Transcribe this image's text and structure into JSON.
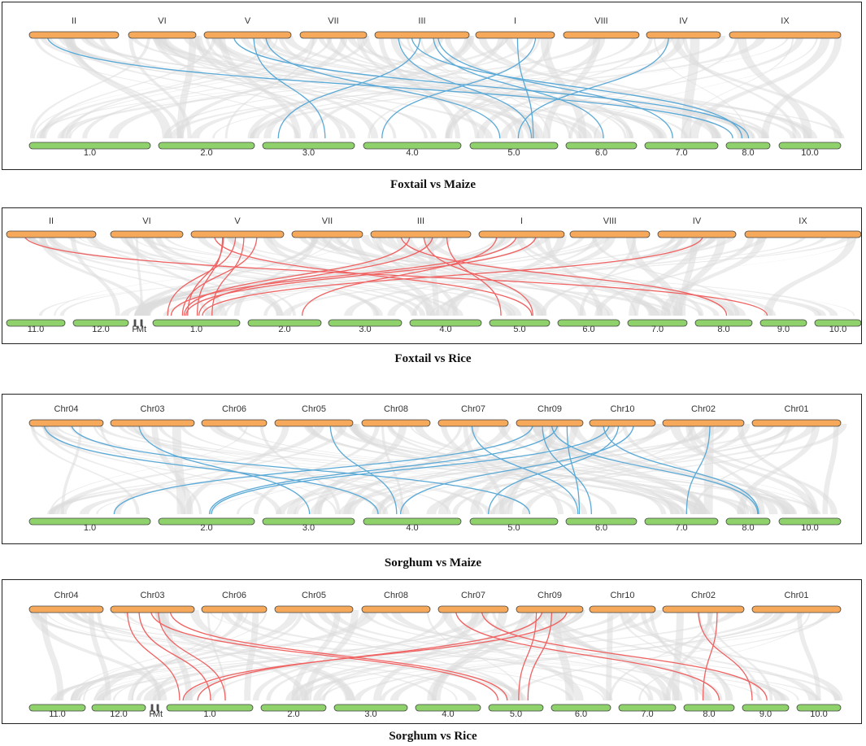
{
  "colors": {
    "top_bar": "#f6a95b",
    "bottom_bar": "#8fd16a",
    "blue_link": "#5aa9d6",
    "red_link": "#f06262",
    "background_link": "#dcdcdc"
  },
  "panels": [
    {
      "caption": "Foxtail vs Maize",
      "link_color": "#5aa9d6",
      "top": [
        "II",
        "VI",
        "V",
        "VII",
        "III",
        "I",
        "VIII",
        "IV",
        "IX"
      ],
      "bottom": [
        "1.0",
        "2.0",
        "3.0",
        "4.0",
        "5.0",
        "6.0",
        "7.0",
        "8.0",
        "10.0"
      ],
      "links": [
        [
          0,
          7
        ],
        [
          2,
          2
        ],
        [
          2,
          7
        ],
        [
          2,
          4
        ],
        [
          4,
          2
        ],
        [
          4,
          4
        ],
        [
          4,
          5
        ],
        [
          4,
          7
        ],
        [
          5,
          3
        ],
        [
          5,
          4
        ],
        [
          7,
          4
        ],
        [
          4,
          6
        ]
      ]
    },
    {
      "caption": "Foxtail vs Rice",
      "link_color": "#f06262",
      "top": [
        "II",
        "VI",
        "V",
        "VII",
        "III",
        "I",
        "VIII",
        "IV",
        "IX"
      ],
      "bottom": [
        "11.0",
        "12.0",
        "P",
        "Mt",
        "1.0",
        "2.0",
        "3.0",
        "4.0",
        "5.0",
        "6.0",
        "7.0",
        "8.0",
        "9.0",
        "10.0"
      ],
      "links": [
        [
          0,
          12
        ],
        [
          2,
          4
        ],
        [
          2,
          4
        ],
        [
          2,
          4
        ],
        [
          2,
          4
        ],
        [
          2,
          8
        ],
        [
          4,
          4
        ],
        [
          4,
          4
        ],
        [
          4,
          8
        ],
        [
          4,
          8
        ],
        [
          4,
          11
        ],
        [
          5,
          4
        ],
        [
          5,
          4
        ],
        [
          5,
          5
        ],
        [
          7,
          4
        ],
        [
          2,
          4
        ]
      ]
    },
    {
      "caption": "Sorghum vs Maize",
      "link_color": "#5aa9d6",
      "top": [
        "Chr04",
        "Chr03",
        "Chr06",
        "Chr05",
        "Chr08",
        "Chr07",
        "Chr09",
        "Chr10",
        "Chr02",
        "Chr01"
      ],
      "bottom": [
        "1.0",
        "2.0",
        "3.0",
        "4.0",
        "5.0",
        "6.0",
        "7.0",
        "8.0",
        "10.0"
      ],
      "links": [
        [
          0,
          3
        ],
        [
          0,
          4
        ],
        [
          1,
          2
        ],
        [
          3,
          3
        ],
        [
          5,
          5
        ],
        [
          6,
          0
        ],
        [
          6,
          1
        ],
        [
          6,
          5
        ],
        [
          6,
          5
        ],
        [
          6,
          7
        ],
        [
          7,
          1
        ],
        [
          7,
          3
        ],
        [
          7,
          4
        ],
        [
          7,
          7
        ],
        [
          8,
          6
        ]
      ]
    },
    {
      "caption": "Sorghum vs Rice",
      "link_color": "#f06262",
      "top": [
        "Chr04",
        "Chr03",
        "Chr06",
        "Chr05",
        "Chr08",
        "Chr07",
        "Chr09",
        "Chr10",
        "Chr02",
        "Chr01"
      ],
      "bottom": [
        "11.0",
        "12.0",
        "P",
        "Mt",
        "1.0",
        "2.0",
        "3.0",
        "4.0",
        "5.0",
        "6.0",
        "7.0",
        "8.0",
        "9.0",
        "10.0"
      ],
      "links": [
        [
          1,
          4
        ],
        [
          1,
          4
        ],
        [
          1,
          4
        ],
        [
          1,
          8
        ],
        [
          1,
          8
        ],
        [
          5,
          11
        ],
        [
          5,
          12
        ],
        [
          6,
          4
        ],
        [
          6,
          4
        ],
        [
          6,
          8
        ],
        [
          6,
          8
        ],
        [
          8,
          11
        ],
        [
          8,
          12
        ]
      ]
    }
  ]
}
